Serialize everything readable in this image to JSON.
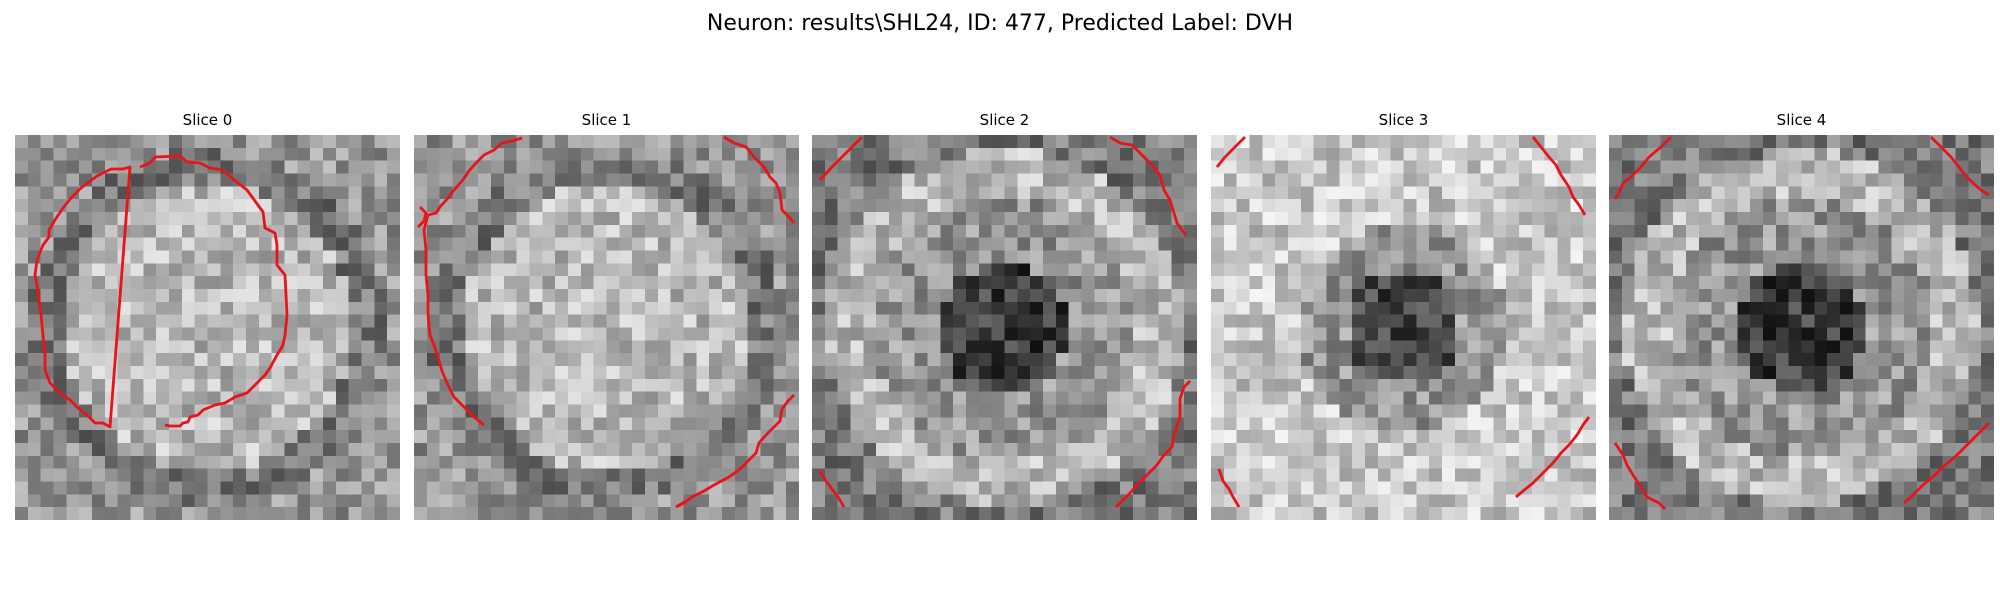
{
  "figure": {
    "title": "Neuron: results\\SHL24, ID: 477, Predicted Label: DVH"
  },
  "colors": {
    "contour": "#e8141a",
    "background": "#ffffff"
  },
  "panels": [
    {
      "label": "Slice 0",
      "pattern": "bright-center"
    },
    {
      "label": "Slice 1",
      "pattern": "bright-center"
    },
    {
      "label": "Slice 2",
      "pattern": "dark-center"
    },
    {
      "label": "Slice 3",
      "pattern": "dark-center-light"
    },
    {
      "label": "Slice 4",
      "pattern": "dark-center"
    }
  ]
}
